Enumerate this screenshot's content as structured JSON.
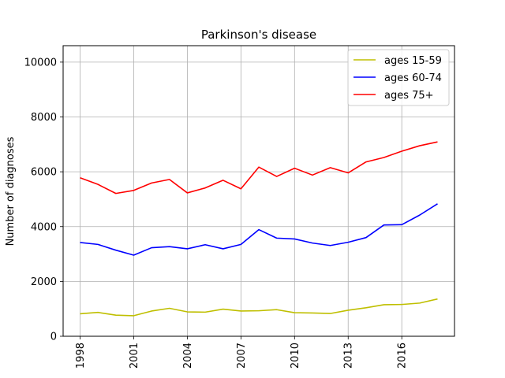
{
  "chart_data": {
    "type": "line",
    "title": "Parkinson's disease",
    "xlabel": "",
    "ylabel": "Number of diagnoses",
    "x": [
      1998,
      1999,
      2000,
      2001,
      2002,
      2003,
      2004,
      2005,
      2006,
      2007,
      2008,
      2009,
      2010,
      2011,
      2012,
      2013,
      2014,
      2015,
      2016,
      2017,
      2018
    ],
    "xticks": [
      1998,
      2001,
      2004,
      2007,
      2010,
      2013,
      2016
    ],
    "yticks": [
      0,
      2000,
      4000,
      6000,
      8000,
      10000
    ],
    "xlim": [
      1997.05,
      2018.95
    ],
    "ylim": [
      0,
      10600
    ],
    "grid": true,
    "legend_position": "top-right",
    "series": [
      {
        "name": "ages 15-59",
        "color": "#bfbf00",
        "values": [
          820,
          870,
          770,
          750,
          920,
          1020,
          890,
          880,
          990,
          920,
          930,
          970,
          860,
          850,
          830,
          950,
          1040,
          1150,
          1160,
          1210,
          1360
        ]
      },
      {
        "name": "ages 60-74",
        "color": "#0000ff",
        "values": [
          3420,
          3350,
          3140,
          2960,
          3230,
          3270,
          3190,
          3340,
          3190,
          3350,
          3890,
          3580,
          3550,
          3400,
          3310,
          3430,
          3600,
          4060,
          4070,
          4420,
          4830
        ]
      },
      {
        "name": "ages 75+",
        "color": "#ff0000",
        "values": [
          5780,
          5540,
          5210,
          5320,
          5590,
          5720,
          5230,
          5410,
          5690,
          5380,
          6170,
          5830,
          6130,
          5880,
          6150,
          5960,
          6360,
          6520,
          6750,
          6950,
          7090
        ]
      }
    ]
  }
}
